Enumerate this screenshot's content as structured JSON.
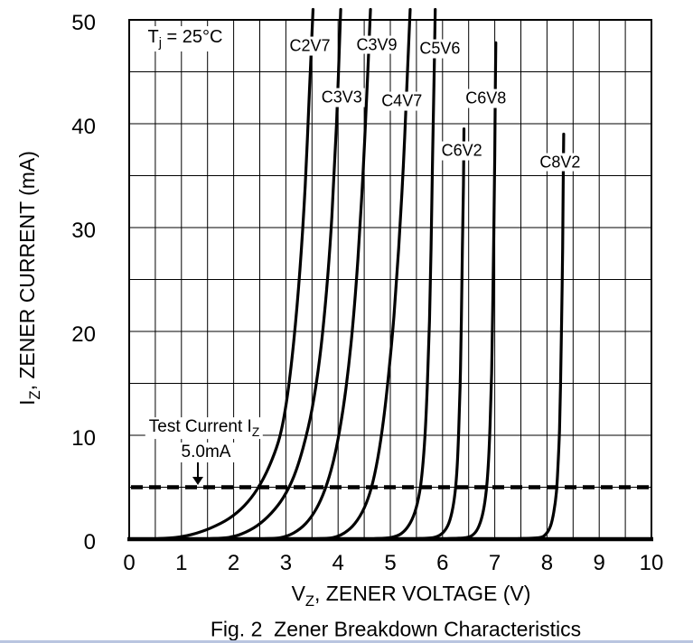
{
  "figure": {
    "caption": "Fig. 2  Zener Breakdown Characteristics"
  },
  "annotations": {
    "tj_pre": "T",
    "tj_sub": "j",
    "tj_rest": " = 25°C",
    "test_current_pre": "Test Current I",
    "test_current_sub": "Z",
    "test_current_value": "5.0mA"
  },
  "chart_data": {
    "type": "line",
    "title": "Fig. 2  Zener Breakdown Characteristics",
    "xlabel_main": "V",
    "xlabel_sub": "Z",
    "xlabel_rest": ", ZENER VOLTAGE (V)",
    "ylabel_main": "I",
    "ylabel_sub": "Z",
    "ylabel_rest": ", ZENER CURRENT (mA)",
    "xlim": [
      0,
      10
    ],
    "ylim": [
      0,
      50
    ],
    "x_ticks": [
      0,
      1,
      2,
      3,
      4,
      5,
      6,
      7,
      8,
      9,
      10
    ],
    "y_ticks": [
      0,
      10,
      20,
      30,
      40,
      50
    ],
    "x_grid_step": 0.5,
    "y_grid_step": 5,
    "grid": "on",
    "test_current_mA": 5.0,
    "junction_temp_C": 25,
    "series": [
      {
        "name": "C2V7",
        "label_at": {
          "v": 3.46,
          "i": 47.5
        },
        "points": [
          [
            0.55,
            0.05
          ],
          [
            0.88,
            0.15
          ],
          [
            1.2,
            0.45
          ],
          [
            1.55,
            1.05
          ],
          [
            1.9,
            1.95
          ],
          [
            2.2,
            3.2
          ],
          [
            2.45,
            4.8
          ],
          [
            2.68,
            7.0
          ],
          [
            2.88,
            9.8
          ],
          [
            3.02,
            13.5
          ],
          [
            3.15,
            19
          ],
          [
            3.27,
            26
          ],
          [
            3.37,
            34
          ],
          [
            3.45,
            43
          ],
          [
            3.52,
            51
          ]
        ]
      },
      {
        "name": "C3V3",
        "label_at": {
          "v": 4.07,
          "i": 42.5
        },
        "points": [
          [
            1.55,
            0.05
          ],
          [
            1.88,
            0.15
          ],
          [
            2.15,
            0.5
          ],
          [
            2.45,
            1.3
          ],
          [
            2.72,
            2.5
          ],
          [
            2.95,
            4.0
          ],
          [
            3.15,
            6.0
          ],
          [
            3.33,
            8.8
          ],
          [
            3.5,
            12.5
          ],
          [
            3.65,
            17.5
          ],
          [
            3.78,
            24
          ],
          [
            3.88,
            31
          ],
          [
            3.97,
            40
          ],
          [
            4.05,
            51
          ]
        ]
      },
      {
        "name": "C3V9",
        "label_at": {
          "v": 4.74,
          "i": 47.6
        },
        "points": [
          [
            2.6,
            0.05
          ],
          [
            2.9,
            0.15
          ],
          [
            3.15,
            0.6
          ],
          [
            3.38,
            1.5
          ],
          [
            3.58,
            2.9
          ],
          [
            3.75,
            4.8
          ],
          [
            3.9,
            7.3
          ],
          [
            4.03,
            10.5
          ],
          [
            4.15,
            14.5
          ],
          [
            4.27,
            20
          ],
          [
            4.38,
            27
          ],
          [
            4.48,
            35.5
          ],
          [
            4.56,
            44
          ],
          [
            4.62,
            51
          ]
        ]
      },
      {
        "name": "C4V7",
        "label_at": {
          "v": 5.22,
          "i": 42.2
        },
        "points": [
          [
            3.6,
            0.05
          ],
          [
            3.9,
            0.15
          ],
          [
            4.12,
            0.6
          ],
          [
            4.32,
            1.5
          ],
          [
            4.5,
            3.0
          ],
          [
            4.64,
            5.0
          ],
          [
            4.76,
            7.8
          ],
          [
            4.87,
            11.5
          ],
          [
            4.97,
            16
          ],
          [
            5.07,
            21.5
          ],
          [
            5.16,
            28
          ],
          [
            5.25,
            36
          ],
          [
            5.32,
            44
          ],
          [
            5.38,
            51
          ]
        ]
      },
      {
        "name": "C5V6",
        "label_at": {
          "v": 5.95,
          "i": 47.2
        },
        "points": [
          [
            4.7,
            0.05
          ],
          [
            5.0,
            0.15
          ],
          [
            5.2,
            0.5
          ],
          [
            5.35,
            1.3
          ],
          [
            5.47,
            2.6
          ],
          [
            5.56,
            4.5
          ],
          [
            5.62,
            7.0
          ],
          [
            5.67,
            10.5
          ],
          [
            5.71,
            15
          ],
          [
            5.75,
            21
          ],
          [
            5.78,
            28
          ],
          [
            5.81,
            37
          ],
          [
            5.84,
            45
          ],
          [
            5.86,
            51
          ]
        ]
      },
      {
        "name": "C6V2",
        "label_at": {
          "v": 6.37,
          "i": 37.4
        },
        "points": [
          [
            5.5,
            0.05
          ],
          [
            5.82,
            0.15
          ],
          [
            5.98,
            0.5
          ],
          [
            6.1,
            1.3
          ],
          [
            6.18,
            2.6
          ],
          [
            6.24,
            4.5
          ],
          [
            6.28,
            7.0
          ],
          [
            6.31,
            10.5
          ],
          [
            6.34,
            15.5
          ],
          [
            6.36,
            21
          ],
          [
            6.38,
            28
          ],
          [
            6.4,
            34
          ],
          [
            6.41,
            39.5
          ]
        ]
      },
      {
        "name": "C6V8",
        "label_at": {
          "v": 6.83,
          "i": 42.4
        },
        "points": [
          [
            6.1,
            0.05
          ],
          [
            6.45,
            0.15
          ],
          [
            6.6,
            0.5
          ],
          [
            6.7,
            1.3
          ],
          [
            6.78,
            2.7
          ],
          [
            6.84,
            4.8
          ],
          [
            6.88,
            7.5
          ],
          [
            6.91,
            11
          ],
          [
            6.94,
            16
          ],
          [
            6.96,
            22
          ],
          [
            6.98,
            29
          ],
          [
            7.0,
            37
          ],
          [
            7.01,
            43
          ],
          [
            7.02,
            47.8
          ]
        ]
      },
      {
        "name": "C8V2",
        "label_at": {
          "v": 8.25,
          "i": 36.3
        },
        "points": [
          [
            7.45,
            0.05
          ],
          [
            7.85,
            0.15
          ],
          [
            7.98,
            0.5
          ],
          [
            8.07,
            1.3
          ],
          [
            8.13,
            2.6
          ],
          [
            8.18,
            4.5
          ],
          [
            8.21,
            7.0
          ],
          [
            8.24,
            10.5
          ],
          [
            8.26,
            15
          ],
          [
            8.28,
            21
          ],
          [
            8.3,
            28
          ],
          [
            8.31,
            34
          ],
          [
            8.32,
            39
          ]
        ]
      }
    ]
  }
}
